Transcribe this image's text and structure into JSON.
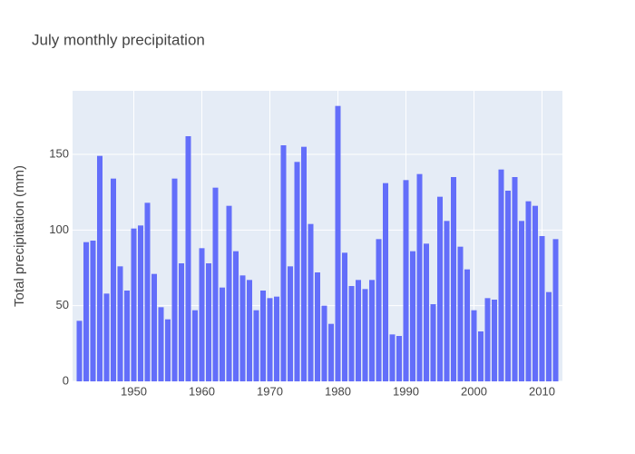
{
  "chart_data": {
    "type": "bar",
    "title": "July monthly precipitation",
    "y_title": "Total precipitation (mm)",
    "x": [
      1942,
      1943,
      1944,
      1945,
      1946,
      1947,
      1948,
      1949,
      1950,
      1951,
      1952,
      1953,
      1954,
      1955,
      1956,
      1957,
      1958,
      1959,
      1960,
      1961,
      1962,
      1963,
      1964,
      1965,
      1966,
      1967,
      1968,
      1969,
      1970,
      1971,
      1972,
      1973,
      1974,
      1975,
      1976,
      1977,
      1978,
      1979,
      1980,
      1981,
      1982,
      1983,
      1984,
      1985,
      1986,
      1987,
      1988,
      1989,
      1990,
      1991,
      1992,
      1993,
      1994,
      1995,
      1996,
      1997,
      1998,
      1999,
      2000,
      2001,
      2002,
      2003,
      2004,
      2005,
      2006,
      2007,
      2008,
      2009,
      2010,
      2011,
      2012
    ],
    "values": [
      40,
      92,
      93,
      149,
      58,
      134,
      76,
      60,
      101,
      103,
      118,
      71,
      49,
      41,
      134,
      78,
      162,
      47,
      88,
      78,
      128,
      62,
      116,
      86,
      70,
      67,
      47,
      60,
      55,
      56,
      156,
      76,
      145,
      155,
      104,
      72,
      50,
      38,
      182,
      85,
      63,
      67,
      61,
      67,
      94,
      131,
      31,
      30,
      133,
      86,
      137,
      91,
      51,
      122,
      106,
      135,
      89,
      74,
      47,
      33,
      55,
      54,
      140,
      126,
      135,
      106,
      119,
      116,
      96,
      59,
      94
    ],
    "color": "#636efa",
    "xlim": [
      1941,
      2013
    ],
    "xticks": [
      1950,
      1960,
      1970,
      1980,
      1990,
      2000,
      2010
    ],
    "ylim": [
      0,
      192
    ],
    "yticks": [
      0,
      50,
      100,
      150
    ],
    "grid": true
  }
}
